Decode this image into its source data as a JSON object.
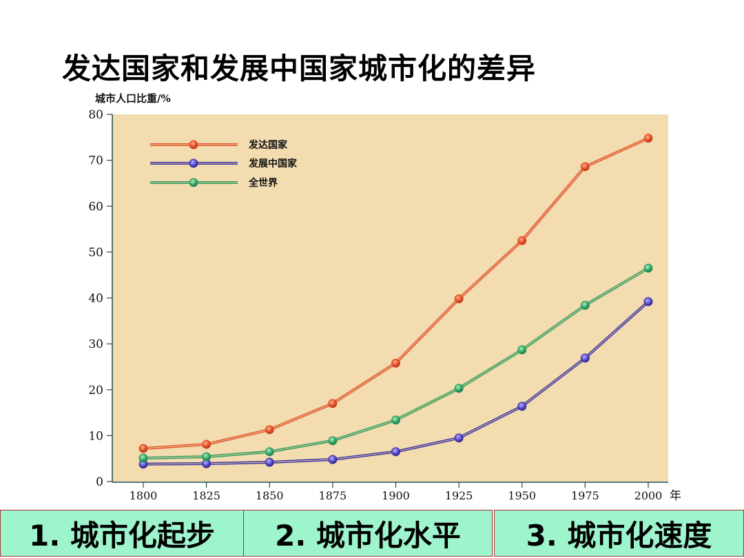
{
  "slide": {
    "title": "发达国家和发展中国家城市化的差异",
    "bottom_boxes": [
      {
        "label": "1. 城市化起步"
      },
      {
        "label": "2. 城市化水平"
      },
      {
        "label": "3. 城市化速度"
      }
    ]
  },
  "chart_data": {
    "type": "line",
    "title": "",
    "ylabel": "城市人口比重/%",
    "xlabel": "年",
    "x": [
      1800,
      1825,
      1850,
      1875,
      1900,
      1925,
      1950,
      1975,
      2000
    ],
    "ylim": [
      0,
      80
    ],
    "yticks": [
      0,
      10,
      20,
      30,
      40,
      50,
      60,
      70,
      80
    ],
    "grid": false,
    "legend_position": "upper-left inside",
    "plot_background": "#F2DCB0",
    "series": [
      {
        "name": "发达国家",
        "color": "#E0502A",
        "values": [
          7.2,
          8.1,
          11.3,
          17.0,
          25.8,
          39.8,
          52.5,
          68.6,
          74.8
        ]
      },
      {
        "name": "发展中国家",
        "color": "#3A2F9E",
        "values": [
          3.8,
          3.9,
          4.2,
          4.8,
          6.5,
          9.5,
          16.4,
          26.9,
          39.2
        ]
      },
      {
        "name": "全世界",
        "color": "#2E9A5C",
        "values": [
          5.1,
          5.4,
          6.5,
          8.9,
          13.4,
          20.3,
          28.7,
          38.4,
          46.5
        ]
      }
    ]
  }
}
